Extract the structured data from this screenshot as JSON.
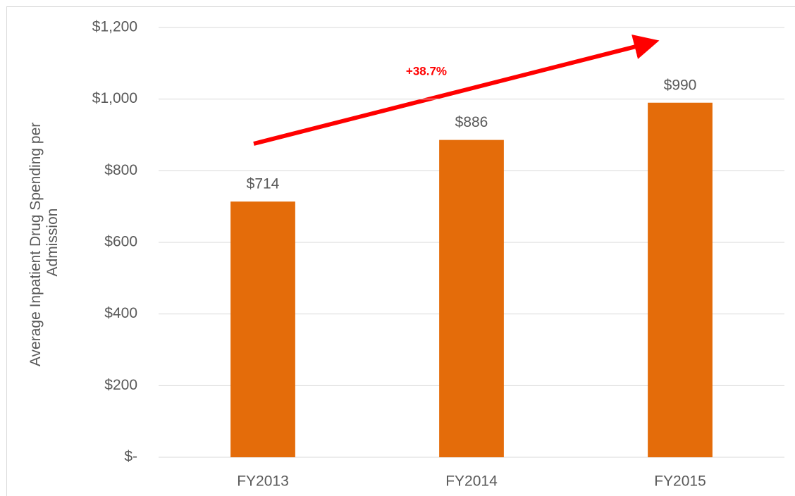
{
  "chart_data": {
    "type": "bar",
    "y_label": [
      "Average Inpatient Drug Spending per",
      "Admission"
    ],
    "annotation": "+38.7%",
    "categories": [
      "FY2013",
      "FY2014",
      "FY2015"
    ],
    "values": [
      714,
      886,
      990
    ],
    "value_labels": [
      "$714",
      "$886",
      "$990"
    ],
    "color": "#e46c0a",
    "ylim": [
      0,
      1200
    ],
    "yticks": [
      {
        "value": 0,
        "label": "$-"
      },
      {
        "value": 200,
        "label": "$200"
      },
      {
        "value": 400,
        "label": "$400"
      },
      {
        "value": 600,
        "label": "$600"
      },
      {
        "value": 800,
        "label": "$800"
      },
      {
        "value": 1000,
        "label": "$1,000"
      },
      {
        "value": 1200,
        "label": "$1,200"
      }
    ],
    "grid": true
  }
}
